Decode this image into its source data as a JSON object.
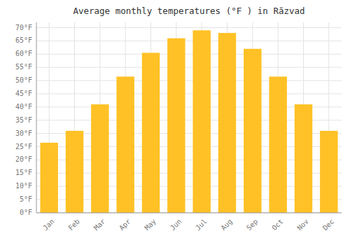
{
  "chart_data": {
    "type": "bar",
    "title": "Average monthly temperatures (°F ) in Răzvad",
    "categories": [
      "Jan",
      "Feb",
      "Mar",
      "Apr",
      "May",
      "Jun",
      "Jul",
      "Aug",
      "Sep",
      "Oct",
      "Nov",
      "Dec"
    ],
    "values": [
      26.5,
      31.0,
      41.0,
      51.5,
      60.5,
      66.0,
      69.0,
      68.0,
      62.0,
      51.5,
      41.0,
      31.0
    ],
    "color": "#FFC125",
    "ylim": [
      0,
      72
    ],
    "yticks": [
      {
        "value": 0,
        "label": "0°F"
      },
      {
        "value": 5,
        "label": "5°F"
      },
      {
        "value": 10,
        "label": "10°F"
      },
      {
        "value": 15,
        "label": "15°F"
      },
      {
        "value": 20,
        "label": "20°F"
      },
      {
        "value": 25,
        "label": "25°F"
      },
      {
        "value": 30,
        "label": "30°F"
      },
      {
        "value": 35,
        "label": "35°F"
      },
      {
        "value": 40,
        "label": "40°F"
      },
      {
        "value": 45,
        "label": "45°F"
      },
      {
        "value": 50,
        "label": "50°F"
      },
      {
        "value": 55,
        "label": "55°F"
      },
      {
        "value": 60,
        "label": "60°F"
      },
      {
        "value": 65,
        "label": "65°F"
      },
      {
        "value": 70,
        "label": "70°F"
      }
    ],
    "grid": true
  }
}
